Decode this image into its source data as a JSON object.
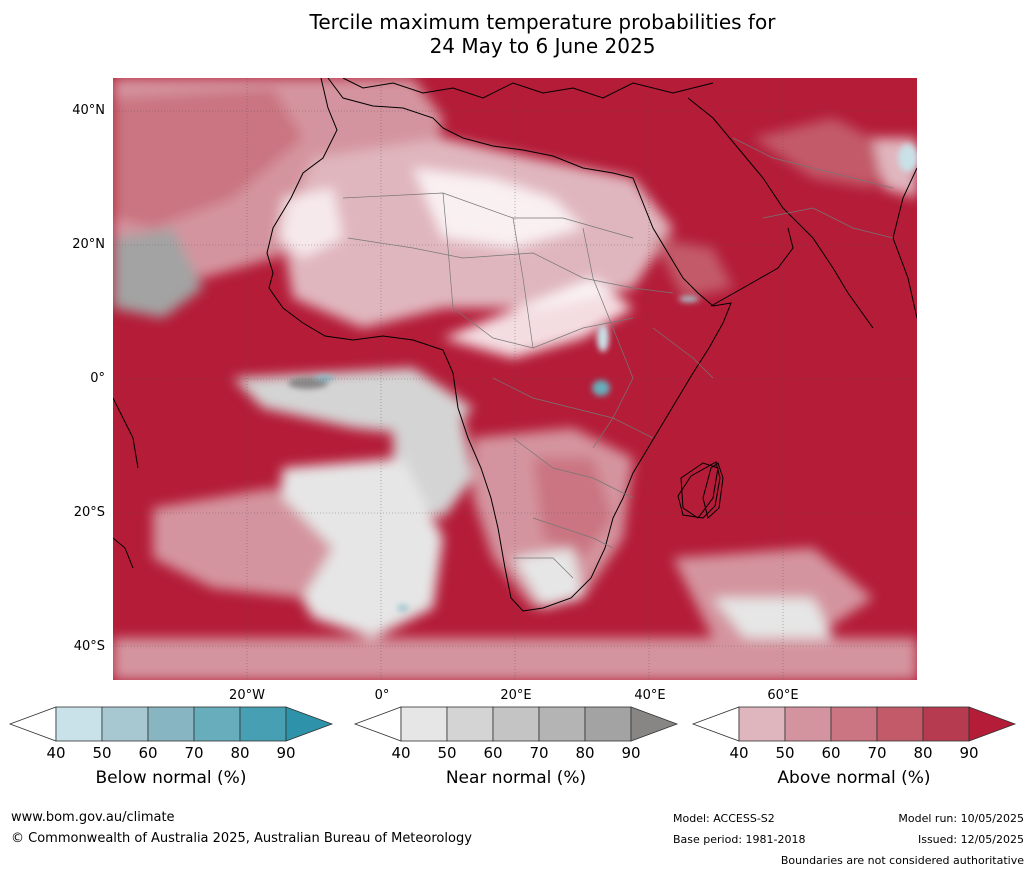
{
  "title_line1": "Tercile maximum temperature probabilities for",
  "title_line2": "24 May to 6 June 2025",
  "map": {
    "lat_labels": [
      "40°N",
      "20°N",
      "0°",
      "20°S",
      "40°S"
    ],
    "lon_labels": [
      "20°W",
      "0°",
      "20°E",
      "40°E",
      "60°E"
    ]
  },
  "legend": {
    "below": {
      "title": "Below normal (%)",
      "ticks": [
        "40",
        "50",
        "60",
        "70",
        "80",
        "90"
      ],
      "colors": [
        "#ffffff",
        "#c9e1e8",
        "#a7c8d0",
        "#88b5c2",
        "#68adbb",
        "#469fb2",
        "#2e93aa"
      ]
    },
    "near": {
      "title": "Near normal (%)",
      "ticks": [
        "40",
        "50",
        "60",
        "70",
        "80",
        "90"
      ],
      "colors": [
        "#ffffff",
        "#e6e6e6",
        "#d4d4d4",
        "#c4c4c4",
        "#b4b4b4",
        "#a3a3a3",
        "#888585"
      ]
    },
    "above": {
      "title": "Above normal (%)",
      "ticks": [
        "40",
        "50",
        "60",
        "70",
        "80",
        "90"
      ],
      "colors": [
        "#ffffff",
        "#e0b6be",
        "#d4949f",
        "#ca7581",
        "#c25a69",
        "#b63b50",
        "#b41c38"
      ]
    }
  },
  "footer": {
    "website": "www.bom.gov.au/climate",
    "copyright": "© Commonwealth of Australia 2025, Australian Bureau of Meteorology",
    "model": "Model: ACCESS-S2",
    "base_period": "Base period: 1981-2018",
    "model_run": "Model run: 10/05/2025",
    "issued": "Issued: 12/05/2025",
    "disclaimer": "Boundaries are not considered authoritative"
  }
}
